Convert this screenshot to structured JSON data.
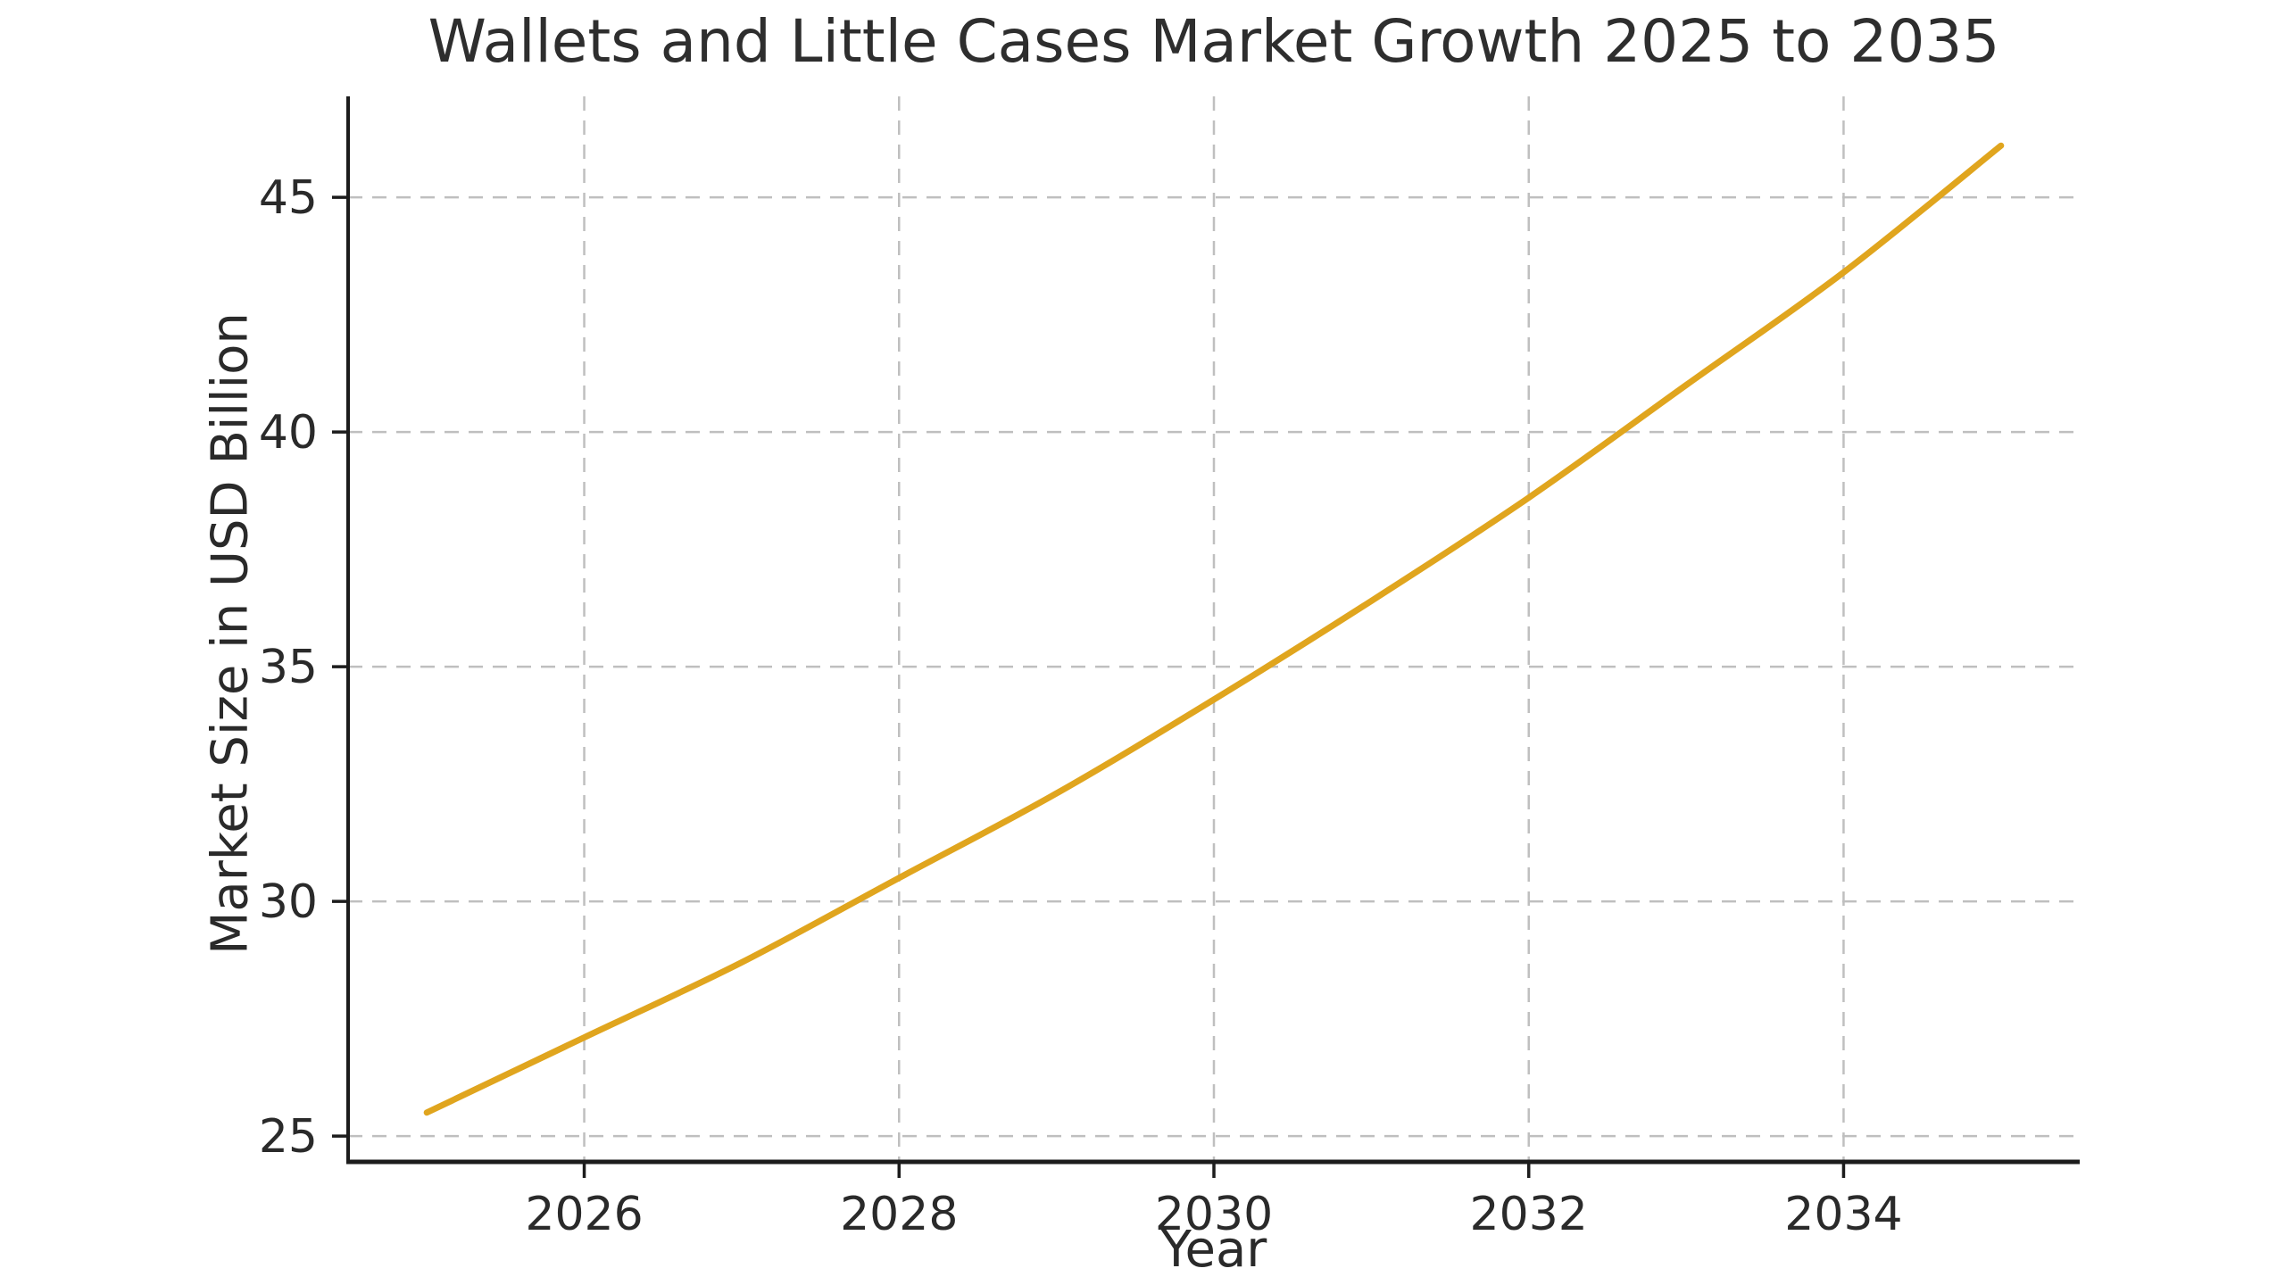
{
  "chart_data": {
    "type": "line",
    "title": "Wallets and Little Cases Market Growth 2025 to 2035",
    "xlabel": "Year",
    "ylabel": "Market Size in USD Billion",
    "x": [
      2025,
      2026,
      2027,
      2028,
      2029,
      2030,
      2031,
      2032,
      2033,
      2034,
      2035
    ],
    "series": [
      {
        "name": "Market Size",
        "values": [
          25.5,
          27.1,
          28.7,
          30.5,
          32.3,
          34.3,
          36.4,
          38.6,
          41.0,
          43.4,
          46.1
        ]
      }
    ],
    "xtick_labels": [
      "2026",
      "2028",
      "2030",
      "2032",
      "2034"
    ],
    "xtick_values": [
      2026,
      2028,
      2030,
      2032,
      2034
    ],
    "ytick_labels": [
      "25",
      "30",
      "35",
      "40",
      "45"
    ],
    "ytick_values": [
      25,
      30,
      35,
      40,
      45
    ],
    "xlim": [
      2024.5,
      2035.5
    ],
    "ylim": [
      24.45,
      47.15
    ],
    "grid": "dashed",
    "legend": "none",
    "colors": {
      "line": "#E0A51E",
      "grid": "#bfbfbf",
      "axis": "#1c1c1c",
      "text": "#2a2a2a",
      "background": "#ffffff"
    }
  }
}
